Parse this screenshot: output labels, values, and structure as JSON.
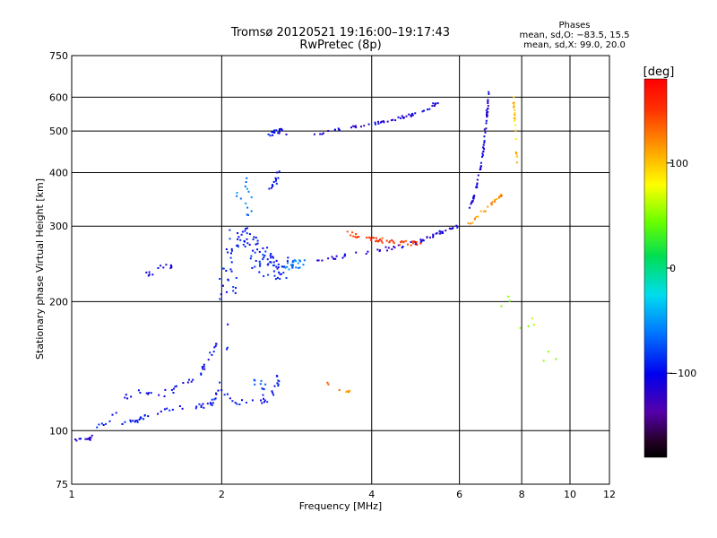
{
  "chart_data": {
    "type": "scatter",
    "title": "Tromsø 20120521 19:16:00–19:17:43",
    "subtitle": "RwPretec (8p)",
    "xlabel": "Frequency [MHz]",
    "ylabel": "Stationary phase Virtual Height [km]",
    "x_scale": "log",
    "y_scale": "log",
    "xlim": [
      1,
      12
    ],
    "ylim": [
      75,
      750
    ],
    "x_ticks": [
      1,
      2,
      4,
      6,
      8,
      10,
      12
    ],
    "x_tick_labels": [
      "1",
      "2",
      "4",
      "6",
      "8",
      "10",
      "12"
    ],
    "y_ticks": [
      75,
      100,
      200,
      300,
      400,
      500,
      600,
      750
    ],
    "y_tick_labels": [
      "75",
      "100",
      "200",
      "300",
      "400",
      "500",
      "600",
      "750"
    ],
    "grid": true,
    "phases_box": {
      "title": "Phases",
      "line1": "mean, sd,O: −83.5, 15.5",
      "line2": "mean, sd,X: 99.0, 20.0"
    },
    "colorbar": {
      "label": "[deg]",
      "range": [
        -180,
        180
      ],
      "tick_values": [
        100,
        0,
        -100
      ],
      "tick_labels": [
        "100",
        "0",
        "−100"
      ]
    },
    "series": [
      {
        "traces": [
          {
            "phase": -110,
            "count": 14,
            "spread": 0.012,
            "pts": [
              [
                1.0,
                95
              ],
              [
                1.08,
                95
              ],
              [
                1.1,
                97
              ]
            ]
          },
          {
            "phase": -95,
            "count": 55,
            "spread": 0.015,
            "pts": [
              [
                1.1,
                100
              ],
              [
                1.15,
                104
              ],
              [
                1.25,
                104
              ],
              [
                1.35,
                105
              ],
              [
                1.4,
                108
              ],
              [
                1.5,
                111
              ],
              [
                1.6,
                113
              ],
              [
                1.8,
                114
              ],
              [
                1.9,
                115
              ],
              [
                1.95,
                120
              ],
              [
                2.0,
                135
              ],
              [
                2.05,
                160
              ],
              [
                2.08,
                185
              ]
            ]
          },
          {
            "phase": -100,
            "count": 40,
            "spread": 0.02,
            "pts": [
              [
                1.2,
                108
              ],
              [
                1.3,
                120
              ],
              [
                1.4,
                125
              ],
              [
                1.5,
                120
              ],
              [
                1.6,
                125
              ],
              [
                1.7,
                130
              ],
              [
                1.8,
                135
              ],
              [
                1.9,
                150
              ],
              [
                1.95,
                160
              ]
            ]
          },
          {
            "phase": -95,
            "count": 28,
            "spread": 0.02,
            "pts": [
              [
                2.0,
                125
              ],
              [
                2.1,
                118
              ],
              [
                2.2,
                116
              ],
              [
                2.4,
                116
              ],
              [
                2.5,
                118
              ],
              [
                2.6,
                130
              ],
              [
                2.6,
                135
              ]
            ]
          },
          {
            "phase": -80,
            "count": 10,
            "spread": 0.04,
            "pts": [
              [
                2.3,
                130
              ],
              [
                2.4,
                125
              ],
              [
                2.5,
                130
              ]
            ]
          },
          {
            "phase": 120,
            "count": 10,
            "spread": 0.01,
            "pts": [
              [
                3.2,
                130
              ],
              [
                3.4,
                125
              ],
              [
                3.6,
                123
              ]
            ]
          },
          {
            "phase": -90,
            "count": 110,
            "spread": 0.08,
            "pts": [
              [
                2.05,
                210
              ],
              [
                2.1,
                260
              ],
              [
                2.2,
                290
              ],
              [
                2.3,
                270
              ],
              [
                2.4,
                250
              ],
              [
                2.5,
                240
              ],
              [
                2.6,
                240
              ],
              [
                2.7,
                240
              ]
            ]
          },
          {
            "phase": -60,
            "count": 22,
            "spread": 0.03,
            "pts": [
              [
                2.7,
                240
              ],
              [
                2.8,
                245
              ],
              [
                2.9,
                245
              ]
            ]
          },
          {
            "phase": -110,
            "count": 60,
            "spread": 0.012,
            "pts": [
              [
                3.0,
                250
              ],
              [
                3.5,
                255
              ],
              [
                4.0,
                262
              ],
              [
                4.5,
                268
              ],
              [
                5.0,
                276
              ],
              [
                5.5,
                290
              ],
              [
                6.0,
                300
              ]
            ]
          },
          {
            "phase": 150,
            "count": 45,
            "spread": 0.015,
            "pts": [
              [
                3.5,
                290
              ],
              [
                4.0,
                280
              ],
              [
                4.5,
                275
              ],
              [
                5.0,
                272
              ]
            ]
          },
          {
            "phase": -110,
            "count": 55,
            "spread": 0.01,
            "pts": [
              [
                3.0,
                490
              ],
              [
                3.5,
                505
              ],
              [
                4.0,
                520
              ],
              [
                4.5,
                535
              ],
              [
                5.0,
                550
              ],
              [
                5.5,
                590
              ]
            ]
          },
          {
            "phase": -100,
            "count": 18,
            "spread": 0.02,
            "pts": [
              [
                2.5,
                490
              ],
              [
                2.6,
                500
              ],
              [
                2.7,
                490
              ]
            ]
          },
          {
            "phase": -95,
            "count": 14,
            "spread": 0.02,
            "pts": [
              [
                2.5,
                360
              ],
              [
                2.55,
                380
              ],
              [
                2.6,
                400
              ]
            ]
          },
          {
            "phase": -110,
            "count": 14,
            "spread": 0.02,
            "pts": [
              [
                1.4,
                230
              ],
              [
                1.5,
                240
              ],
              [
                1.6,
                245
              ]
            ]
          },
          {
            "phase": -110,
            "count": 60,
            "spread": 0.006,
            "pts": [
              [
                6.3,
                330
              ],
              [
                6.5,
                370
              ],
              [
                6.7,
                450
              ],
              [
                6.8,
                540
              ],
              [
                6.9,
                630
              ]
            ]
          },
          {
            "phase": 120,
            "count": 25,
            "spread": 0.01,
            "pts": [
              [
                6.2,
                300
              ],
              [
                6.6,
                320
              ],
              [
                7.0,
                340
              ],
              [
                7.3,
                355
              ]
            ]
          },
          {
            "phase": 100,
            "count": 22,
            "spread": 0.006,
            "pts": [
              [
                7.7,
                600
              ],
              [
                7.75,
                520
              ],
              [
                7.8,
                450
              ],
              [
                7.85,
                420
              ]
            ]
          },
          {
            "phase": -60,
            "count": 14,
            "spread": 0.05,
            "pts": [
              [
                2.1,
                340
              ],
              [
                2.2,
                380
              ],
              [
                2.3,
                310
              ]
            ]
          },
          {
            "phase": 60,
            "count": 10,
            "spread": 0.08,
            "pts": [
              [
                7.2,
                200
              ],
              [
                8.5,
                170
              ],
              [
                9.5,
                140
              ]
            ]
          }
        ]
      }
    ]
  }
}
